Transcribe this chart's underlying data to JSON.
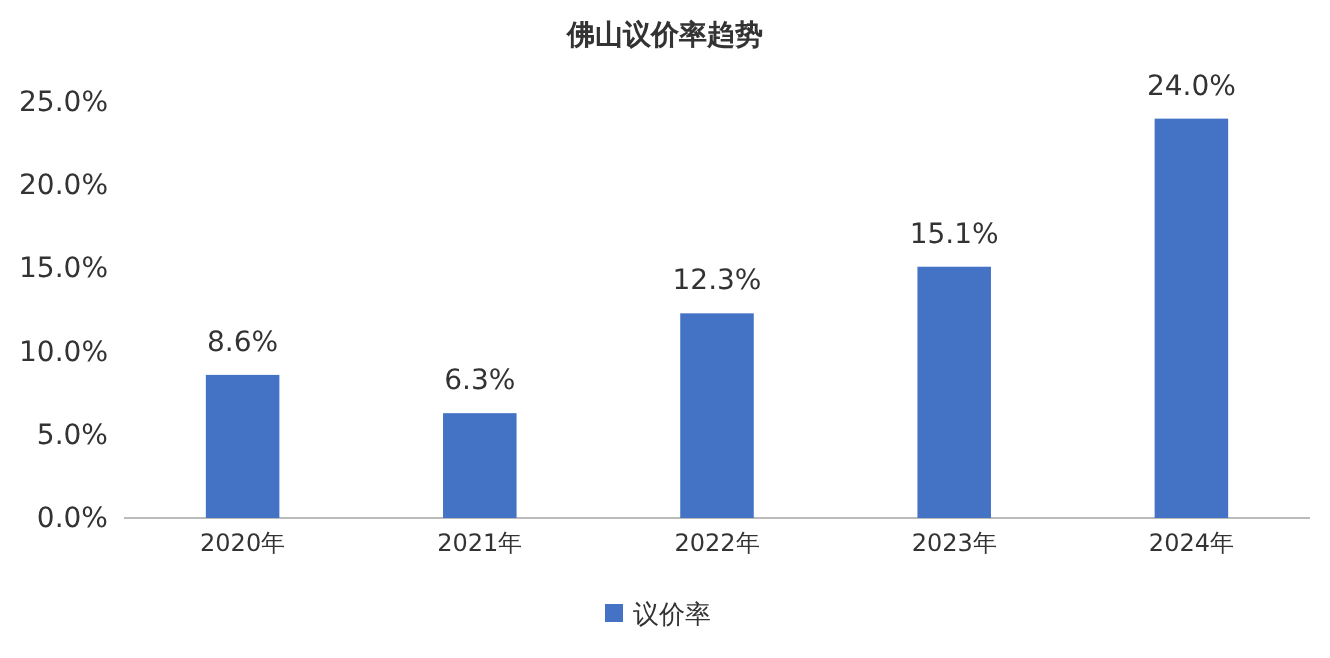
{
  "chart_data": {
    "type": "bar",
    "title": "佛山议价率趋势",
    "categories": [
      "2020年",
      "2021年",
      "2022年",
      "2023年",
      "2024年"
    ],
    "series": [
      {
        "name": "议价率",
        "color": "#4472c4",
        "values": [
          8.6,
          6.3,
          12.3,
          15.1,
          24.0
        ],
        "value_labels": [
          "8.6%",
          "6.3%",
          "12.3%",
          "15.1%",
          "24.0%"
        ]
      }
    ],
    "ylim": [
      0,
      25
    ],
    "yticks": [
      {
        "value": 0,
        "label": "0.0%"
      },
      {
        "value": 5,
        "label": "5.0%"
      },
      {
        "value": 10,
        "label": "10.0%"
      },
      {
        "value": 15,
        "label": "15.0%"
      },
      {
        "value": 20,
        "label": "20.0%"
      },
      {
        "value": 25,
        "label": "25.0%"
      }
    ],
    "grid": false,
    "legend": "bottom"
  }
}
